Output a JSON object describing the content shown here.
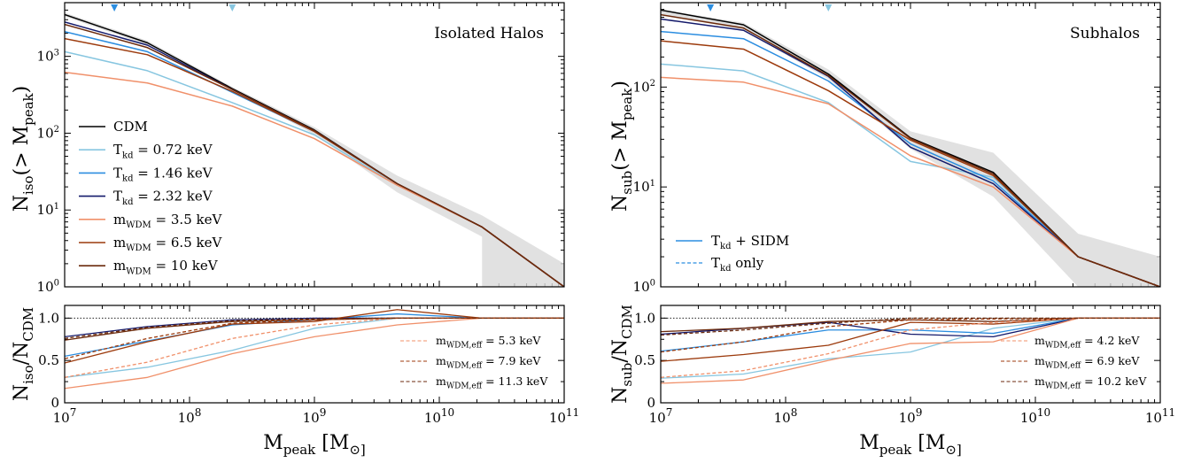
{
  "colors": {
    "cdm": "#000000",
    "tkd_072": "#87c6e0",
    "tkd_146": "#2b8de0",
    "tkd_232": "#141a6b",
    "wdm_35": "#f0906a",
    "wdm_65": "#9c3a0c",
    "wdm_10": "#6b2a0c",
    "band": "#d9d9d9"
  },
  "x_tick_labels": [
    "10^7",
    "10^8",
    "10^9",
    "10^10",
    "10^11"
  ],
  "chart_data": [
    {
      "type": "line",
      "panel": "top-left",
      "title": "Isolated Halos",
      "ylabel_main": "N_iso(> M_peak)",
      "xscale": "log",
      "yscale": "log",
      "xlim": [
        10000000.0,
        100000000000.0
      ],
      "ylim": [
        1,
        5000
      ],
      "y_tick_labels": [
        "10^0",
        "10^1",
        "10^2",
        "10^3"
      ],
      "x": [
        10000000.0,
        46000000.0,
        220000000.0,
        1000000000.0,
        4600000000.0,
        22000000000.0,
        100000000000.0
      ],
      "band": {
        "x": [
          10000000.0,
          46000000.0,
          220000000.0,
          1000000000.0,
          4600000000.0,
          22000000000.0,
          22000000000.0,
          100000000000.0
        ],
        "upper": [
          3700,
          1600,
          400,
          120,
          28,
          8.5,
          8.5,
          2.0
        ],
        "lower": [
          3300,
          1400,
          360,
          96,
          17,
          4.5,
          1.0,
          1.0
        ]
      },
      "triangles": [
        {
          "x": 25000000.0,
          "color": "#2b8de0"
        },
        {
          "x": 220000000.0,
          "color": "#87c6e0"
        }
      ],
      "legend_position": "left-center",
      "legend": [
        {
          "label": "CDM",
          "key": "cdm"
        },
        {
          "label": "T_kd = 0.72 keV",
          "key": "tkd_072"
        },
        {
          "label": "T_kd = 1.46 keV",
          "key": "tkd_146"
        },
        {
          "label": "T_kd = 2.32 keV",
          "key": "tkd_232"
        },
        {
          "label": "m_WDM = 3.5 keV",
          "key": "wdm_35"
        },
        {
          "label": "m_WDM = 6.5 keV",
          "key": "wdm_65"
        },
        {
          "label": "m_WDM = 10 keV",
          "key": "wdm_10"
        }
      ],
      "series": [
        {
          "key": "cdm",
          "values": [
            3500,
            1500,
            380,
            110,
            22,
            6,
            1
          ]
        },
        {
          "key": "tkd_072",
          "values": [
            1150,
            650,
            250,
            95,
            21,
            6,
            1
          ]
        },
        {
          "key": "tkd_146",
          "values": [
            2100,
            1150,
            340,
            105,
            22,
            6,
            1
          ]
        },
        {
          "key": "tkd_232",
          "values": [
            2800,
            1400,
            370,
            108,
            22,
            6,
            1
          ]
        },
        {
          "key": "wdm_35",
          "values": [
            620,
            450,
            225,
            85,
            21,
            6,
            1
          ]
        },
        {
          "key": "wdm_65",
          "values": [
            1700,
            1050,
            350,
            105,
            22,
            6,
            1
          ]
        },
        {
          "key": "wdm_10",
          "values": [
            2600,
            1300,
            370,
            108,
            22,
            6,
            1
          ]
        }
      ]
    },
    {
      "type": "line",
      "panel": "bottom-left",
      "ylabel": "N_iso/N_CDM",
      "xlabel": "M_peak [M_⊙]",
      "xscale": "log",
      "xlim": [
        10000000.0,
        100000000000.0
      ],
      "ylim": [
        0,
        1.15
      ],
      "y_tick_labels": [
        "0",
        "0.5",
        "1.0"
      ],
      "reference_line": 1.0,
      "x": [
        10000000.0,
        46000000.0,
        220000000.0,
        1000000000.0,
        4600000000.0,
        22000000000.0,
        100000000000.0
      ],
      "legend_position": "right-center",
      "legend": [
        {
          "label": "m_WDM,eff = 5.3 keV",
          "key": "wdm_35",
          "dashed": true
        },
        {
          "label": "m_WDM,eff = 7.9 keV",
          "key": "wdm_65",
          "dashed": true
        },
        {
          "label": "m_WDM,eff = 11.3 keV",
          "key": "wdm_10",
          "dashed": true
        }
      ],
      "series": [
        {
          "key": "tkd_072",
          "values": [
            0.3,
            0.42,
            0.62,
            0.88,
            1.0,
            1.0,
            1.0
          ]
        },
        {
          "key": "tkd_146",
          "values": [
            0.55,
            0.73,
            0.92,
            0.98,
            1.05,
            1.0,
            1.0
          ]
        },
        {
          "key": "tkd_232",
          "values": [
            0.78,
            0.9,
            0.98,
            1.0,
            1.0,
            1.0,
            1.0
          ]
        },
        {
          "key": "wdm_35",
          "values": [
            0.17,
            0.3,
            0.58,
            0.78,
            0.92,
            1.0,
            1.0
          ]
        },
        {
          "key": "wdm_65",
          "values": [
            0.47,
            0.72,
            0.93,
            0.96,
            1.1,
            1.0,
            1.0
          ]
        },
        {
          "key": "wdm_10",
          "values": [
            0.74,
            0.88,
            0.96,
            0.98,
            1.0,
            1.0,
            1.0
          ]
        },
        {
          "key": "wdm_35",
          "dashed": true,
          "values": [
            0.3,
            0.48,
            0.76,
            0.92,
            1.0,
            1.0,
            1.0
          ]
        },
        {
          "key": "wdm_65",
          "dashed": true,
          "values": [
            0.52,
            0.76,
            0.94,
            0.98,
            1.0,
            1.0,
            1.0
          ]
        },
        {
          "key": "wdm_10",
          "dashed": true,
          "values": [
            0.76,
            0.89,
            0.97,
            0.99,
            1.0,
            1.0,
            1.0
          ]
        }
      ]
    },
    {
      "type": "line",
      "panel": "top-right",
      "title": "Subhalos",
      "ylabel_main": "N_sub(> M_peak)",
      "xscale": "log",
      "yscale": "log",
      "xlim": [
        10000000.0,
        100000000000.0
      ],
      "ylim": [
        1,
        700
      ],
      "y_tick_labels": [
        "10^0",
        "10^1",
        "10^2"
      ],
      "x": [
        10000000.0,
        46000000.0,
        220000000.0,
        1000000000.0,
        4600000000.0,
        22000000000.0,
        100000000000.0
      ],
      "band": {
        "x": [
          10000000.0,
          46000000.0,
          220000000.0,
          1000000000.0,
          4600000000.0,
          22000000000.0,
          100000000000.0
        ],
        "upper": [
          600,
          440,
          150,
          36,
          22,
          3.4,
          2.0
        ],
        "lower": [
          540,
          370,
          120,
          24,
          8,
          1.0,
          1.0
        ]
      },
      "triangles": [
        {
          "x": 25000000.0,
          "color": "#2b8de0"
        },
        {
          "x": 220000000.0,
          "color": "#87c6e0"
        }
      ],
      "legend_position": "bottom-left",
      "legend": [
        {
          "label": "T_kd + SIDM",
          "key": "tkd_146"
        },
        {
          "label": "T_kd only",
          "key": "tkd_146",
          "dashed": true
        }
      ],
      "series": [
        {
          "key": "cdm",
          "values": [
            590,
            420,
            135,
            31,
            14,
            2,
            1
          ]
        },
        {
          "key": "tkd_072",
          "values": [
            170,
            145,
            70,
            18,
            12.5,
            2,
            1
          ]
        },
        {
          "key": "tkd_146",
          "values": [
            360,
            305,
            115,
            27,
            11.5,
            2,
            1
          ]
        },
        {
          "key": "tkd_232",
          "values": [
            480,
            370,
            128,
            25,
            10.8,
            2,
            1
          ]
        },
        {
          "key": "wdm_35",
          "values": [
            125,
            112,
            68,
            20.5,
            10,
            2,
            1
          ]
        },
        {
          "key": "wdm_65",
          "values": [
            290,
            240,
            92,
            29.5,
            13,
            2,
            1
          ]
        },
        {
          "key": "wdm_10",
          "values": [
            530,
            390,
            130,
            30.5,
            13.5,
            2,
            1
          ]
        }
      ]
    },
    {
      "type": "line",
      "panel": "bottom-right",
      "ylabel": "N_sub/N_CDM",
      "xlabel": "M_peak [M_⊙]",
      "xscale": "log",
      "xlim": [
        10000000.0,
        100000000000.0
      ],
      "ylim": [
        0,
        1.15
      ],
      "y_tick_labels": [
        "0",
        "0.5",
        "1.0"
      ],
      "reference_line": 1.0,
      "x": [
        10000000.0,
        46000000.0,
        220000000.0,
        1000000000.0,
        4600000000.0,
        22000000000.0,
        100000000000.0
      ],
      "legend_position": "right-center",
      "legend": [
        {
          "label": "m_WDM,eff = 4.2 keV",
          "key": "wdm_35",
          "dashed": true
        },
        {
          "label": "m_WDM,eff = 6.9 keV",
          "key": "wdm_65",
          "dashed": true
        },
        {
          "label": "m_WDM,eff = 10.2 keV",
          "key": "wdm_10",
          "dashed": true
        }
      ],
      "series": [
        {
          "key": "tkd_072",
          "values": [
            0.29,
            0.34,
            0.52,
            0.6,
            0.88,
            1.0,
            1.0
          ]
        },
        {
          "key": "tkd_146",
          "values": [
            0.61,
            0.72,
            0.86,
            0.86,
            0.82,
            1.0,
            1.0
          ]
        },
        {
          "key": "tkd_232",
          "values": [
            0.81,
            0.88,
            0.95,
            0.81,
            0.78,
            1.0,
            1.0
          ]
        },
        {
          "key": "wdm_35",
          "values": [
            0.23,
            0.27,
            0.5,
            0.7,
            0.72,
            1.0,
            1.0
          ]
        },
        {
          "key": "wdm_65",
          "values": [
            0.49,
            0.57,
            0.68,
            0.95,
            0.93,
            1.0,
            1.0
          ]
        },
        {
          "key": "wdm_10",
          "values": [
            0.84,
            0.88,
            0.96,
            0.98,
            0.96,
            1.0,
            1.0
          ]
        },
        {
          "key": "wdm_35",
          "dashed": true,
          "values": [
            0.3,
            0.38,
            0.58,
            0.86,
            0.95,
            1.0,
            1.0
          ]
        },
        {
          "key": "wdm_65",
          "dashed": true,
          "values": [
            0.6,
            0.72,
            0.9,
            0.98,
            0.99,
            1.0,
            1.0
          ]
        },
        {
          "key": "wdm_10",
          "dashed": true,
          "values": [
            0.8,
            0.86,
            0.94,
            1.0,
            1.0,
            1.0,
            1.0
          ]
        }
      ]
    }
  ]
}
